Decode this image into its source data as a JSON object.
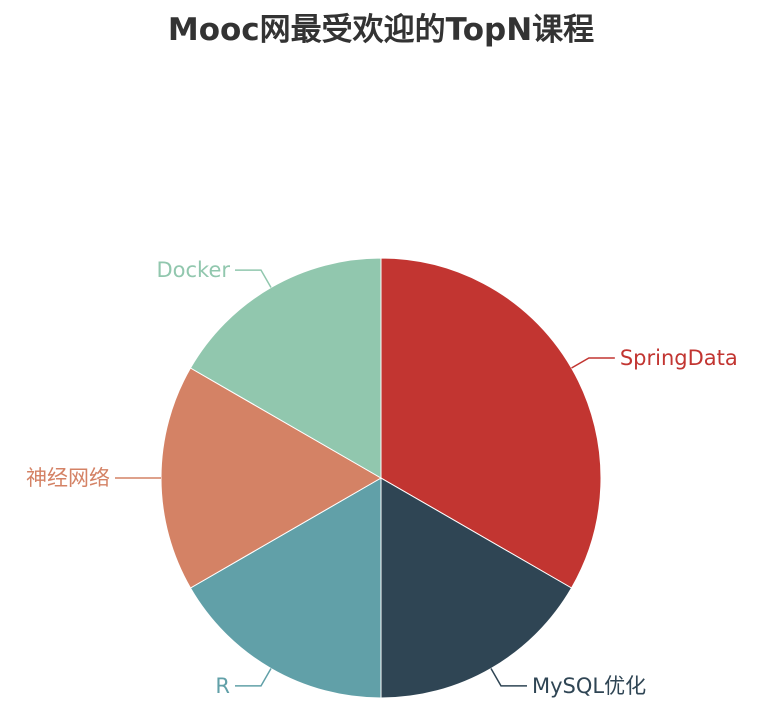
{
  "chart_data": {
    "type": "pie",
    "title": "Mooc网最受欢迎的TopN课程",
    "slices": [
      {
        "label": "SpringData",
        "value": 2,
        "color": "#c23531"
      },
      {
        "label": "MySQL优化",
        "value": 1,
        "color": "#2f4554"
      },
      {
        "label": "R",
        "value": 1,
        "color": "#61a0a8"
      },
      {
        "label": "神经网络",
        "value": 1,
        "color": "#d48265"
      },
      {
        "label": "Docker",
        "value": 1,
        "color": "#91c7ae"
      }
    ],
    "legend": "none"
  }
}
